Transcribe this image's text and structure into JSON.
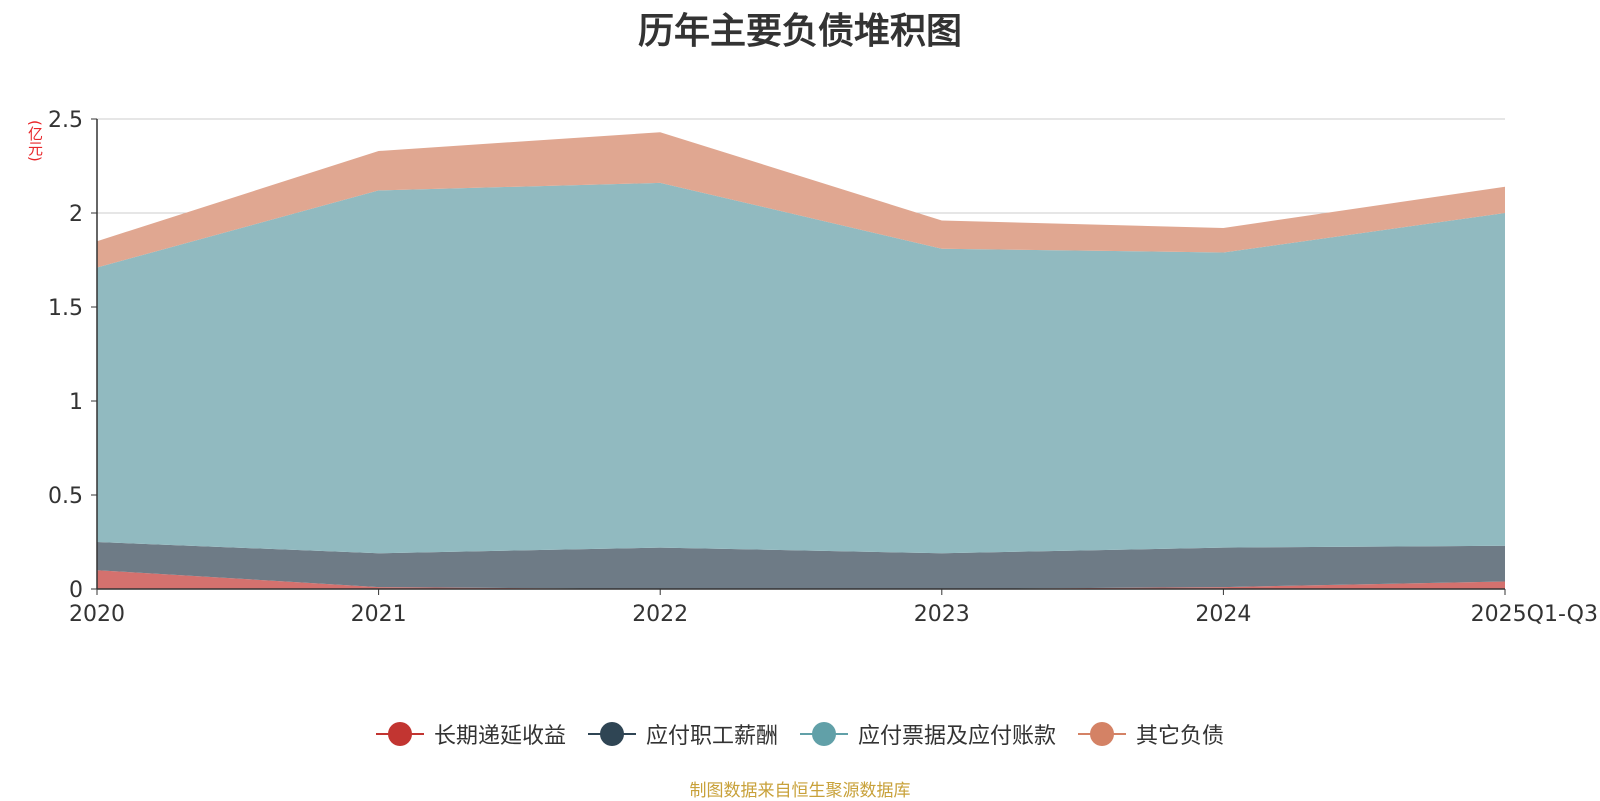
{
  "chart_data": {
    "type": "area",
    "stacked": true,
    "title": "历年主要负债堆积图",
    "unit": "(亿元)",
    "categories": [
      "2020",
      "2021",
      "2022",
      "2023",
      "2024",
      "2025Q1-Q3"
    ],
    "ylim": [
      0,
      2.5
    ],
    "yticks": [
      "0",
      "0.5",
      "1",
      "1.5",
      "2",
      "2.5"
    ],
    "grid": true,
    "legend_position": "bottom",
    "series": [
      {
        "name": "长期递延收益",
        "color": "#c23531",
        "fill": "#d4716e",
        "values": [
          0.1,
          0.01,
          0.0,
          0.0,
          0.01,
          0.04
        ]
      },
      {
        "name": "应付职工薪酬",
        "color": "#2f4554",
        "fill": "#6e7b86",
        "values": [
          0.15,
          0.18,
          0.22,
          0.19,
          0.21,
          0.19
        ]
      },
      {
        "name": "应付票据及应付账款",
        "color": "#61a0a8",
        "fill": "#91bac0",
        "values": [
          1.46,
          1.93,
          1.94,
          1.62,
          1.57,
          1.77
        ]
      },
      {
        "name": "其它负债",
        "color": "#d48265",
        "fill": "#e0a791",
        "values": [
          0.14,
          0.21,
          0.27,
          0.15,
          0.13,
          0.14
        ]
      }
    ]
  },
  "footer": {
    "source": "制图数据来自恒生聚源数据库"
  }
}
